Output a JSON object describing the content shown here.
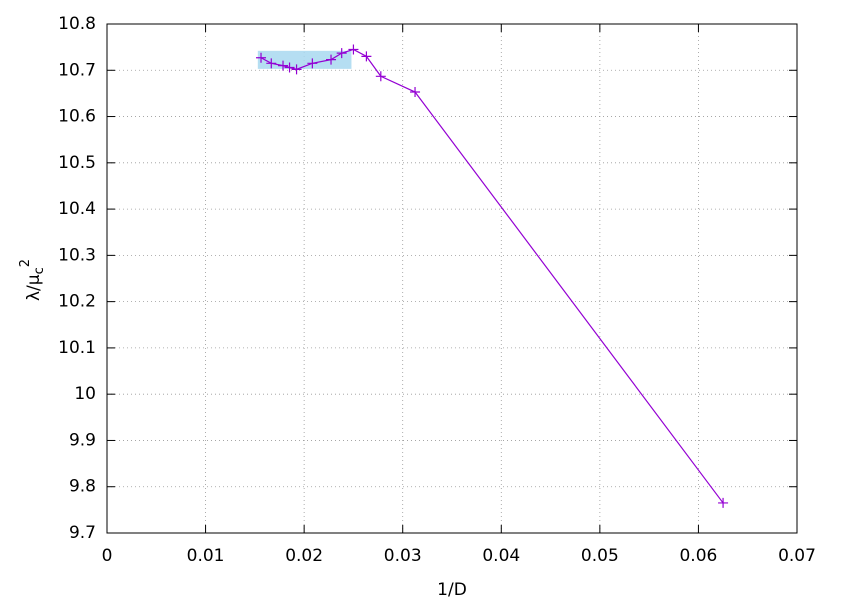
{
  "chart_data": {
    "type": "line",
    "xlabel": "1/D",
    "ylabel": {
      "base": "λ/μ",
      "sub": "c",
      "sup": "2"
    },
    "x": [
      0.015625,
      0.016667,
      0.017857,
      0.018519,
      0.019231,
      0.020833,
      0.022727,
      0.02381,
      0.025,
      0.026316,
      0.027778,
      0.03125,
      0.0625
    ],
    "series": [
      {
        "color": "#9400d3",
        "values": [
          10.727,
          10.715,
          10.71,
          10.706,
          10.702,
          10.715,
          10.723,
          10.737,
          10.745,
          10.73,
          10.687,
          10.653,
          9.765
        ]
      }
    ],
    "band": {
      "xlim": [
        0.0153,
        0.0248
      ],
      "ylim": [
        10.703,
        10.742
      ],
      "color": "#a8d8f0"
    },
    "xlim": [
      0,
      0.07
    ],
    "xticks": [
      0,
      0.01,
      0.02,
      0.03,
      0.04,
      0.05,
      0.06,
      0.07
    ],
    "ylim": [
      9.7,
      10.8
    ],
    "yticks": [
      9.7,
      9.8,
      9.9,
      10,
      10.1,
      10.2,
      10.3,
      10.4,
      10.5,
      10.6,
      10.7,
      10.8
    ],
    "grid": true
  }
}
